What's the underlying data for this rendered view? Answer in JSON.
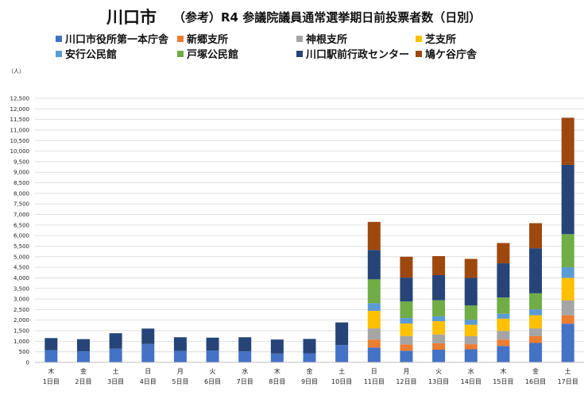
{
  "header": {
    "city": "川口市",
    "subtitle": "（参考）R4 参議院議員通常選挙期日前投票者数（日別）"
  },
  "chart_data": {
    "type": "bar",
    "stacked": true,
    "unit_label": "（人）",
    "ylim": [
      0,
      12500
    ],
    "ytick_step": 500,
    "ytick_labels": [
      "0",
      "500",
      "1,000",
      "1,500",
      "2,000",
      "2,500",
      "3,000",
      "3,500",
      "4,000",
      "4,500",
      "5,000",
      "5,500",
      "6,000",
      "6,500",
      "7,000",
      "7,500",
      "8,000",
      "8,500",
      "9,000",
      "9,500",
      "10,000",
      "10,500",
      "11,000",
      "11,500",
      "12,000",
      "12,500"
    ],
    "grid": true,
    "legend_position": "top",
    "categories": [
      {
        "weekday": "木",
        "day": "1日目"
      },
      {
        "weekday": "金",
        "day": "2日目"
      },
      {
        "weekday": "土",
        "day": "3日目"
      },
      {
        "weekday": "日",
        "day": "4日目"
      },
      {
        "weekday": "月",
        "day": "5日目"
      },
      {
        "weekday": "火",
        "day": "6日目"
      },
      {
        "weekday": "水",
        "day": "7日目"
      },
      {
        "weekday": "木",
        "day": "8日目"
      },
      {
        "weekday": "金",
        "day": "9日目"
      },
      {
        "weekday": "土",
        "day": "10日目"
      },
      {
        "weekday": "日",
        "day": "11日目"
      },
      {
        "weekday": "月",
        "day": "12日目"
      },
      {
        "weekday": "火",
        "day": "13日目"
      },
      {
        "weekday": "水",
        "day": "14日目"
      },
      {
        "weekday": "木",
        "day": "15日目"
      },
      {
        "weekday": "金",
        "day": "16日目"
      },
      {
        "weekday": "土",
        "day": "17日目"
      }
    ],
    "series": [
      {
        "name": "川口市役所第一本庁舎",
        "color": "#4472C4",
        "values": [
          580,
          520,
          650,
          870,
          540,
          560,
          520,
          420,
          430,
          820,
          700,
          550,
          600,
          620,
          780,
          920,
          1830
        ]
      },
      {
        "name": "新郷支所",
        "color": "#ED7D31",
        "values": [
          0,
          0,
          0,
          0,
          0,
          0,
          0,
          0,
          0,
          0,
          380,
          300,
          300,
          240,
          300,
          320,
          400
        ]
      },
      {
        "name": "神根支所",
        "color": "#A5A5A5",
        "values": [
          0,
          0,
          0,
          0,
          0,
          0,
          0,
          0,
          0,
          0,
          530,
          400,
          420,
          380,
          410,
          370,
          700
        ]
      },
      {
        "name": "芝支所",
        "color": "#FFC000",
        "values": [
          0,
          0,
          0,
          0,
          0,
          0,
          0,
          0,
          0,
          0,
          830,
          590,
          630,
          540,
          580,
          620,
          1070
        ]
      },
      {
        "name": "安行公民館",
        "color": "#5B9BD5",
        "values": [
          0,
          0,
          0,
          0,
          0,
          0,
          0,
          0,
          0,
          0,
          360,
          260,
          230,
          230,
          230,
          280,
          500
        ]
      },
      {
        "name": "戸塚公民館",
        "color": "#70AD47",
        "values": [
          0,
          0,
          0,
          0,
          0,
          0,
          0,
          0,
          0,
          0,
          1130,
          780,
          760,
          680,
          770,
          760,
          1570
        ]
      },
      {
        "name": "川口駅前行政センター",
        "color": "#264478",
        "values": [
          570,
          580,
          730,
          730,
          650,
          610,
          670,
          660,
          680,
          1070,
          1390,
          1130,
          1190,
          1310,
          1620,
          2130,
          3280
        ]
      },
      {
        "name": "鳩ケ谷庁舎",
        "color": "#9E480E",
        "values": [
          0,
          0,
          0,
          0,
          0,
          0,
          0,
          0,
          0,
          0,
          1330,
          990,
          900,
          900,
          960,
          1190,
          2230
        ]
      }
    ]
  }
}
